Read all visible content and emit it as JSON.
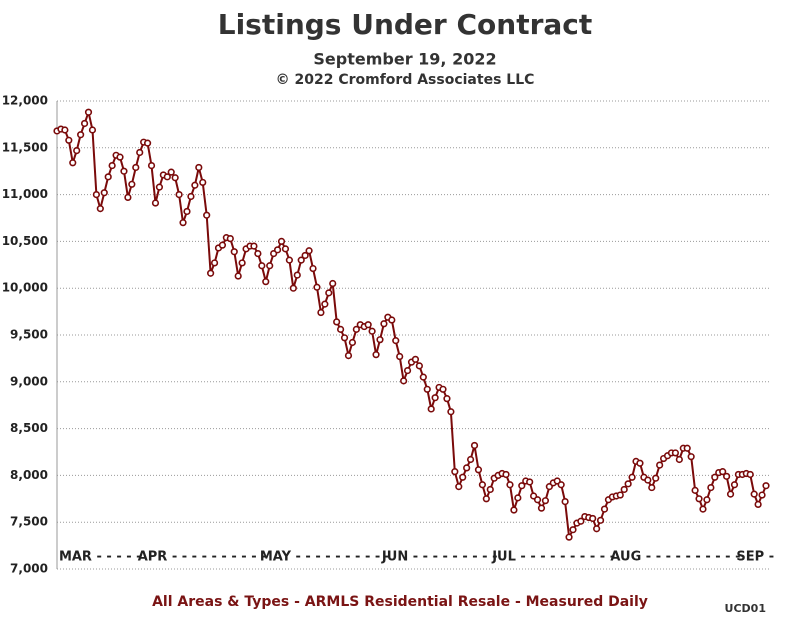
{
  "chart_data": {
    "type": "line",
    "title": "Listings Under Contract",
    "subtitle": "September 19, 2022",
    "copyright": "© 2022 Cromford Associates LLC",
    "footer": "All Areas & Types - ARMLS Residential Resale - Measured Daily",
    "code": "UCD01",
    "color": "#7a0a0a",
    "grid": true,
    "xlim": [
      0,
      180
    ],
    "xticks": [
      {
        "value": 1,
        "label": "MAR - - - - -"
      },
      {
        "value": 21,
        "label": "APR - - - - - - - - - -"
      },
      {
        "value": 52,
        "label": "MAY - - - - - - - - - -"
      },
      {
        "value": 83,
        "label": "JUN - - - - - - - - -"
      },
      {
        "value": 111,
        "label": "JUL - - - - - - - - - -"
      },
      {
        "value": 141,
        "label": "AUG - - - - - - - - - -"
      },
      {
        "value": 173,
        "label": "SEP -"
      }
    ],
    "ylim": [
      7000,
      12000
    ],
    "yticks": [
      {
        "value": 7000,
        "label": "7,000"
      },
      {
        "value": 7500,
        "label": "7,500"
      },
      {
        "value": 8000,
        "label": "8,000"
      },
      {
        "value": 8500,
        "label": "8,500"
      },
      {
        "value": 9000,
        "label": "9,000"
      },
      {
        "value": 9500,
        "label": "9,500"
      },
      {
        "value": 10000,
        "label": "10,000"
      },
      {
        "value": 10500,
        "label": "10,500"
      },
      {
        "value": 11000,
        "label": "11,000"
      },
      {
        "value": 11500,
        "label": "11,500"
      },
      {
        "value": 12000,
        "label": "12,000"
      }
    ],
    "values": [
      11680,
      11700,
      11690,
      11580,
      11340,
      11470,
      11640,
      11760,
      11880,
      11690,
      11000,
      10850,
      11020,
      11190,
      11310,
      11420,
      11400,
      11250,
      10970,
      11110,
      11290,
      11450,
      11560,
      11550,
      11310,
      10910,
      11080,
      11210,
      11190,
      11240,
      11180,
      11000,
      10700,
      10820,
      10980,
      11100,
      11290,
      11130,
      10780,
      10160,
      10270,
      10430,
      10460,
      10540,
      10530,
      10390,
      10130,
      10270,
      10420,
      10450,
      10450,
      10370,
      10240,
      10070,
      10240,
      10370,
      10410,
      10500,
      10420,
      10300,
      10000,
      10140,
      10300,
      10350,
      10400,
      10210,
      10010,
      9740,
      9830,
      9950,
      10050,
      9640,
      9560,
      9470,
      9280,
      9420,
      9560,
      9610,
      9590,
      9610,
      9540,
      9290,
      9450,
      9620,
      9690,
      9660,
      9440,
      9270,
      9010,
      9120,
      9210,
      9240,
      9170,
      9050,
      8920,
      8710,
      8830,
      8940,
      8920,
      8820,
      8680,
      8040,
      7880,
      7980,
      8080,
      8170,
      8320,
      8060,
      7900,
      7750,
      7850,
      7970,
      8000,
      8020,
      8010,
      7900,
      7630,
      7760,
      7890,
      7940,
      7930,
      7780,
      7740,
      7650,
      7730,
      7880,
      7920,
      7940,
      7900,
      7720,
      7340,
      7420,
      7490,
      7510,
      7560,
      7550,
      7540,
      7430,
      7520,
      7640,
      7740,
      7770,
      7780,
      7790,
      7850,
      7910,
      7980,
      8150,
      8130,
      7980,
      7950,
      7870,
      7970,
      8110,
      8180,
      8210,
      8240,
      8240,
      8170,
      8290,
      8290,
      8200,
      7840,
      7750,
      7640,
      7740,
      7870,
      7980,
      8030,
      8040,
      7990,
      7800,
      7900,
      8010,
      8010,
      8020,
      8010,
      7800,
      7690,
      7790,
      7890
    ]
  }
}
